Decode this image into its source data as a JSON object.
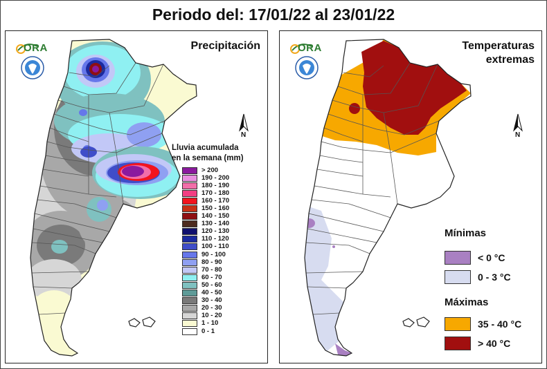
{
  "title": "Periodo del: 17/01/22 al 23/01/22",
  "brand_text": "ORA",
  "colors": {
    "province_border": "#555555",
    "country_outline": "#222222"
  },
  "left_panel": {
    "title": "Precipitación",
    "legend_title_line1": "Lluvia acumulada",
    "legend_title_line2": "en la semana (mm)",
    "legend": [
      {
        "label": "> 200",
        "color": "#8b1a9e"
      },
      {
        "label": "190 - 200",
        "color": "#e98fe0"
      },
      {
        "label": "180 - 190",
        "color": "#f26ea9"
      },
      {
        "label": "170 - 180",
        "color": "#f23f83"
      },
      {
        "label": "160 - 170",
        "color": "#f2141e"
      },
      {
        "label": "150 - 160",
        "color": "#c73015"
      },
      {
        "label": "140 - 150",
        "color": "#8f0f12"
      },
      {
        "label": "130 - 140",
        "color": "#4d2b1f"
      },
      {
        "label": "120 - 130",
        "color": "#10106e"
      },
      {
        "label": "110 - 120",
        "color": "#1b2aa0"
      },
      {
        "label": "100 - 110",
        "color": "#3f4dc9"
      },
      {
        "label": "90 - 100",
        "color": "#6677ea"
      },
      {
        "label": "80 - 90",
        "color": "#8fa0f2"
      },
      {
        "label": "70 - 80",
        "color": "#c2c8f7"
      },
      {
        "label": "60 - 70",
        "color": "#8ff0f2"
      },
      {
        "label": "50 - 60",
        "color": "#7fc1c0"
      },
      {
        "label": "40 - 50",
        "color": "#5f9b98"
      },
      {
        "label": "30 - 40",
        "color": "#7a7a7a"
      },
      {
        "label": "20 - 30",
        "color": "#a8a8a8"
      },
      {
        "label": "10 - 20",
        "color": "#d6d6d6"
      },
      {
        "label": "1 - 10",
        "color": "#fafad2"
      },
      {
        "label": "0 - 1",
        "color": "#ffffff"
      }
    ]
  },
  "right_panel": {
    "title_line1": "Temperaturas",
    "title_line2": "extremas",
    "minimas_heading": "Mínimas",
    "minimas": [
      {
        "label": "< 0 °C",
        "color": "#a980c2"
      },
      {
        "label": "0 - 3 °C",
        "color": "#d7dcf0"
      }
    ],
    "maximas_heading": "Máximas",
    "maximas": [
      {
        "label": "35 - 40 °C",
        "color": "#f7a800"
      },
      {
        "label": "> 40 °C",
        "color": "#a10f0f"
      }
    ]
  },
  "north_label": "N"
}
